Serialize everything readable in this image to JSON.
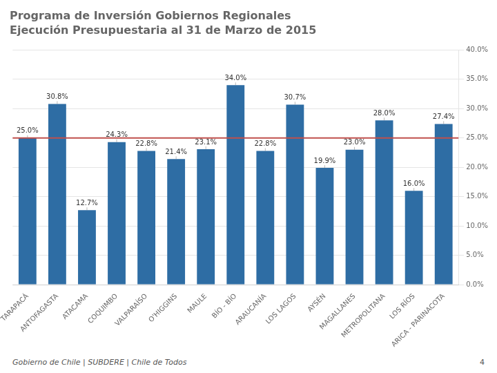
{
  "chart_data": {
    "type": "bar",
    "title": "Programa de Inversión Gobiernos Regionales",
    "subtitle": "Ejecución Presupuestaria al 31 de Marzo de 2015",
    "categories": [
      "TARAPACÁ",
      "ANTOFAGASTA",
      "ATACAMA",
      "COQUIMBO",
      "VALPARAÍSO",
      "O'HIGGINS",
      "MAULE",
      "BÍO - BÍO",
      "ARAUCANÍA",
      "LOS LAGOS",
      "AYSÉN",
      "MAGALLANES",
      "METROPOLITANA",
      "LOS RÍOS",
      "ARICA - PARINACOTA"
    ],
    "values": [
      25.0,
      30.8,
      12.7,
      24.3,
      22.8,
      21.4,
      23.1,
      34.0,
      22.8,
      30.7,
      19.9,
      23.0,
      28.0,
      16.0,
      27.4
    ],
    "value_labels": [
      "25.0%",
      "30.8%",
      "12.7%",
      "24.3%",
      "22.8%",
      "21.4%",
      "23.1%",
      "34.0%",
      "22.8%",
      "30.7%",
      "19.9%",
      "23.0%",
      "28.0%",
      "16.0%",
      "27.4%"
    ],
    "data_labels": true,
    "color": "#2E6DA4",
    "reference_line": {
      "value": 25.0,
      "color": "#C0504D"
    },
    "ylim": [
      0,
      40
    ],
    "yticks": [
      {
        "value": 0,
        "label": "0.0%"
      },
      {
        "value": 5,
        "label": "5.0%"
      },
      {
        "value": 10,
        "label": "10.0%"
      },
      {
        "value": 15,
        "label": "15.0%"
      },
      {
        "value": 20,
        "label": "20.0%"
      },
      {
        "value": 25,
        "label": "25.0%"
      },
      {
        "value": 30,
        "label": "30.0%"
      },
      {
        "value": 35,
        "label": "35.0%"
      },
      {
        "value": 40,
        "label": "40.0%"
      }
    ],
    "grid": true,
    "annotations": [
      "Gobierno de Chile | SUBDERE | Chile de Todos",
      "4"
    ]
  }
}
